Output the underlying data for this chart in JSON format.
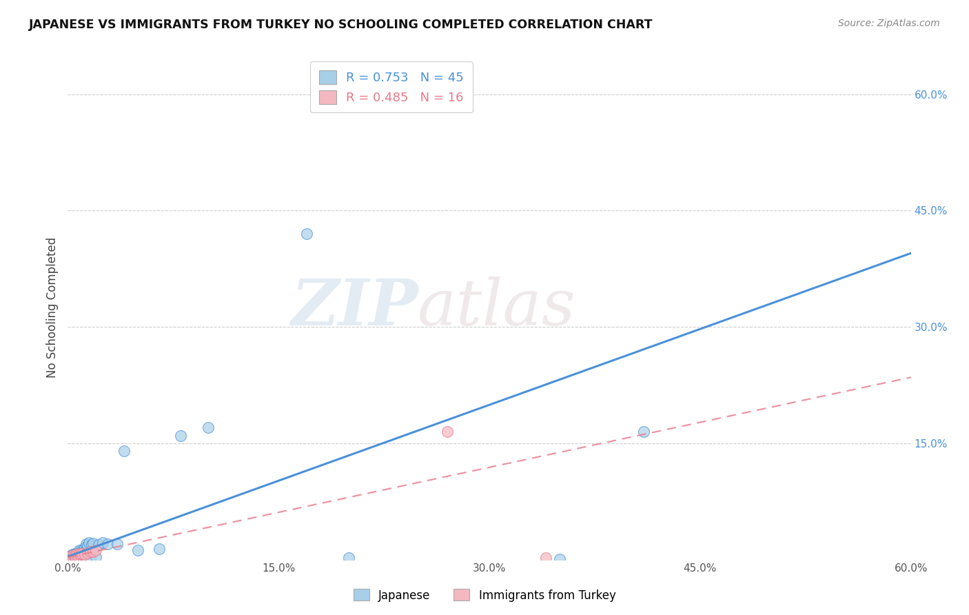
{
  "title": "JAPANESE VS IMMIGRANTS FROM TURKEY NO SCHOOLING COMPLETED CORRELATION CHART",
  "source": "Source: ZipAtlas.com",
  "ylabel": "No Schooling Completed",
  "xlim": [
    0.0,
    0.6
  ],
  "ylim": [
    0.0,
    0.65
  ],
  "xtick_labels": [
    "0.0%",
    "15.0%",
    "30.0%",
    "45.0%",
    "60.0%"
  ],
  "xtick_vals": [
    0.0,
    0.15,
    0.3,
    0.45,
    0.6
  ],
  "ytick_labels": [
    "15.0%",
    "30.0%",
    "45.0%",
    "60.0%"
  ],
  "ytick_vals": [
    0.15,
    0.3,
    0.45,
    0.6
  ],
  "japanese_R": 0.753,
  "japanese_N": 45,
  "turkey_R": 0.485,
  "turkey_N": 16,
  "japanese_color": "#a8cfe8",
  "turkey_color": "#f4b8c1",
  "japanese_line_color": "#4a90d9",
  "turkey_line_color": "#e87a8a",
  "background_color": "#ffffff",
  "grid_color": "#cccccc",
  "watermark_zip": "ZIP",
  "watermark_atlas": "atlas",
  "japanese_x": [
    0.001,
    0.002,
    0.002,
    0.003,
    0.003,
    0.003,
    0.004,
    0.004,
    0.005,
    0.005,
    0.005,
    0.006,
    0.006,
    0.006,
    0.007,
    0.007,
    0.008,
    0.008,
    0.008,
    0.009,
    0.009,
    0.01,
    0.011,
    0.012,
    0.013,
    0.013,
    0.014,
    0.015,
    0.016,
    0.017,
    0.018,
    0.02,
    0.022,
    0.025,
    0.028,
    0.035,
    0.04,
    0.05,
    0.065,
    0.08,
    0.1,
    0.17,
    0.2,
    0.35,
    0.41
  ],
  "japanese_y": [
    0.003,
    0.004,
    0.005,
    0.003,
    0.005,
    0.007,
    0.004,
    0.006,
    0.003,
    0.005,
    0.008,
    0.004,
    0.006,
    0.009,
    0.005,
    0.008,
    0.006,
    0.009,
    0.012,
    0.008,
    0.011,
    0.01,
    0.012,
    0.016,
    0.013,
    0.02,
    0.018,
    0.022,
    0.002,
    0.019,
    0.021,
    0.003,
    0.019,
    0.022,
    0.02,
    0.02,
    0.14,
    0.012,
    0.014,
    0.16,
    0.17,
    0.42,
    0.002,
    0.001,
    0.165
  ],
  "turkey_x": [
    0.002,
    0.003,
    0.004,
    0.005,
    0.006,
    0.007,
    0.008,
    0.009,
    0.01,
    0.012,
    0.014,
    0.016,
    0.018,
    0.02,
    0.27,
    0.34
  ],
  "turkey_y": [
    0.004,
    0.003,
    0.006,
    0.005,
    0.007,
    0.005,
    0.008,
    0.007,
    0.008,
    0.007,
    0.009,
    0.01,
    0.01,
    0.012,
    0.165,
    0.002
  ],
  "jp_line_x0": 0.0,
  "jp_line_x1": 0.6,
  "jp_line_y0": 0.004,
  "jp_line_y1": 0.395,
  "tr_line_x0": 0.0,
  "tr_line_x1": 0.6,
  "tr_line_y0": 0.003,
  "tr_line_y1": 0.235
}
